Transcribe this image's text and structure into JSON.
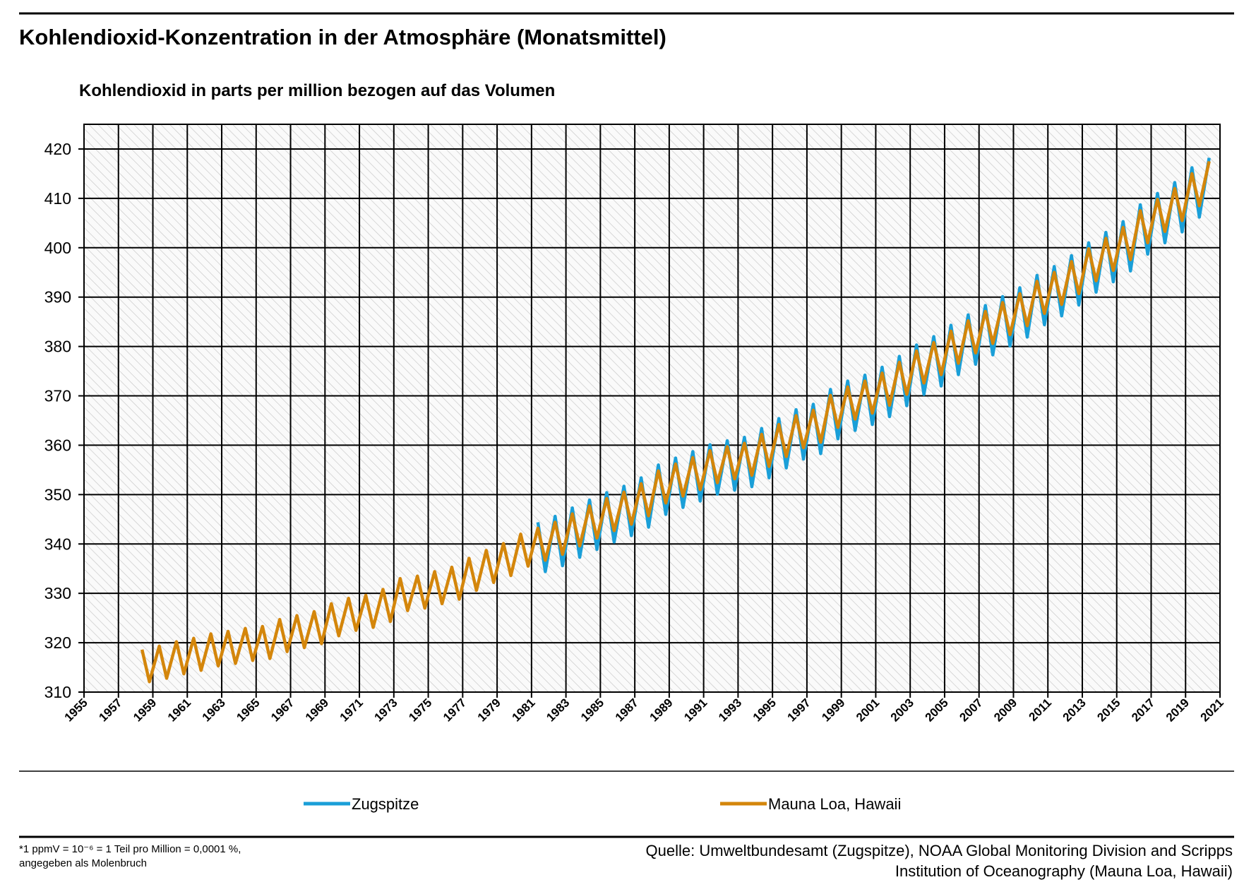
{
  "chart_data": {
    "type": "line",
    "title": "Kohlendioxid-Konzentration in der Atmosphäre (Monatsmittel)",
    "subtitle": "Kohlendioxid in parts per million bezogen auf das Volumen",
    "xlim": [
      1955,
      2021
    ],
    "xticks": [
      1955,
      1957,
      1959,
      1961,
      1963,
      1965,
      1967,
      1969,
      1971,
      1973,
      1975,
      1977,
      1979,
      1981,
      1983,
      1985,
      1987,
      1989,
      1991,
      1993,
      1995,
      1997,
      1999,
      2001,
      2003,
      2005,
      2007,
      2009,
      2011,
      2013,
      2015,
      2017,
      2019,
      2021
    ],
    "ylim": [
      310,
      425
    ],
    "yticks": [
      310,
      320,
      330,
      340,
      350,
      360,
      370,
      380,
      390,
      400,
      410,
      420
    ],
    "grid": true,
    "legend": "bottom",
    "series": [
      {
        "name": "Zugspitze",
        "color": "#1a9fd8",
        "x": [
          1981.37,
          1981.8,
          1982.37,
          1982.8,
          1983.37,
          1983.8,
          1984.37,
          1984.8,
          1985.37,
          1985.8,
          1986.37,
          1986.8,
          1987.37,
          1987.8,
          1988.37,
          1988.8,
          1989.37,
          1989.8,
          1990.37,
          1990.8,
          1991.37,
          1991.8,
          1992.37,
          1992.8,
          1993.37,
          1993.8,
          1994.37,
          1994.8,
          1995.37,
          1995.8,
          1996.37,
          1996.8,
          1997.37,
          1997.8,
          1998.37,
          1998.8,
          1999.37,
          1999.8,
          2000.37,
          2000.8,
          2001.37,
          2001.8,
          2002.37,
          2002.8,
          2003.37,
          2003.8,
          2004.37,
          2004.8,
          2005.37,
          2005.8,
          2006.37,
          2006.8,
          2007.37,
          2007.8,
          2008.37,
          2008.8,
          2009.37,
          2009.8,
          2010.37,
          2010.8,
          2011.37,
          2011.8,
          2012.37,
          2012.8,
          2013.37,
          2013.8,
          2014.37,
          2014.8,
          2015.37,
          2015.8,
          2016.37,
          2016.8,
          2017.37,
          2017.8,
          2018.37,
          2018.8,
          2019.37,
          2019.8,
          2020.37
        ],
        "values": [
          344.4,
          334.4,
          345.6,
          335.6,
          347.3,
          337.3,
          348.9,
          338.9,
          350.4,
          340.4,
          351.7,
          341.7,
          353.4,
          343.4,
          356.0,
          346.0,
          357.4,
          347.4,
          358.7,
          348.7,
          360.1,
          350.1,
          360.9,
          350.9,
          361.6,
          351.6,
          363.4,
          353.4,
          365.4,
          355.4,
          367.2,
          357.2,
          368.3,
          358.3,
          371.3,
          361.3,
          373.0,
          363.0,
          374.2,
          364.2,
          375.8,
          365.8,
          378.0,
          368.0,
          380.3,
          370.3,
          382.0,
          372.0,
          384.3,
          374.3,
          386.4,
          376.4,
          388.3,
          378.3,
          390.1,
          380.1,
          391.9,
          381.9,
          394.4,
          384.4,
          396.2,
          386.2,
          398.4,
          388.4,
          401.0,
          391.0,
          403.1,
          393.1,
          405.3,
          395.3,
          408.7,
          398.7,
          411.0,
          401.0,
          413.2,
          403.2,
          416.2,
          406.2,
          418.2
        ]
      },
      {
        "name": "Mauna Loa, Hawaii",
        "color": "#d4860b",
        "x": [
          1958.37,
          1958.8,
          1959.37,
          1959.8,
          1960.37,
          1960.8,
          1961.37,
          1961.8,
          1962.37,
          1962.8,
          1963.37,
          1963.8,
          1964.37,
          1964.8,
          1965.37,
          1965.8,
          1966.37,
          1966.8,
          1967.37,
          1967.8,
          1968.37,
          1968.8,
          1969.37,
          1969.8,
          1970.37,
          1970.8,
          1971.37,
          1971.8,
          1972.37,
          1972.8,
          1973.37,
          1973.8,
          1974.37,
          1974.8,
          1975.37,
          1975.8,
          1976.37,
          1976.8,
          1977.37,
          1977.8,
          1978.37,
          1978.8,
          1979.37,
          1979.8,
          1980.37,
          1980.8,
          1981.37,
          1981.8,
          1982.37,
          1982.8,
          1983.37,
          1983.8,
          1984.37,
          1984.8,
          1985.37,
          1985.8,
          1986.37,
          1986.8,
          1987.37,
          1987.8,
          1988.37,
          1988.8,
          1989.37,
          1989.8,
          1990.37,
          1990.8,
          1991.37,
          1991.8,
          1992.37,
          1992.8,
          1993.37,
          1993.8,
          1994.37,
          1994.8,
          1995.37,
          1995.8,
          1996.37,
          1996.8,
          1997.37,
          1997.8,
          1998.37,
          1998.8,
          1999.37,
          1999.8,
          2000.37,
          2000.8,
          2001.37,
          2001.8,
          2002.37,
          2002.8,
          2003.37,
          2003.8,
          2004.37,
          2004.8,
          2005.37,
          2005.8,
          2006.37,
          2006.8,
          2007.37,
          2007.8,
          2008.37,
          2008.8,
          2009.37,
          2009.8,
          2010.37,
          2010.8,
          2011.37,
          2011.8,
          2012.37,
          2012.8,
          2013.37,
          2013.8,
          2014.37,
          2014.8,
          2015.37,
          2015.8,
          2016.37,
          2016.8,
          2017.37,
          2017.8,
          2018.37,
          2018.8,
          2019.37,
          2019.8,
          2020.37
        ],
        "values": [
          318.6,
          312.1,
          319.3,
          312.8,
          320.2,
          313.7,
          320.9,
          314.4,
          321.8,
          315.3,
          322.3,
          315.8,
          322.9,
          316.4,
          323.3,
          316.8,
          324.7,
          318.2,
          325.5,
          319.0,
          326.3,
          319.8,
          327.9,
          321.4,
          329.0,
          322.5,
          329.6,
          323.1,
          330.8,
          324.3,
          333.0,
          326.5,
          333.5,
          327.0,
          334.4,
          327.9,
          335.3,
          328.8,
          337.1,
          330.6,
          338.7,
          332.2,
          340.1,
          333.6,
          342.0,
          335.5,
          343.2,
          336.7,
          344.4,
          337.9,
          346.1,
          339.6,
          347.7,
          341.2,
          349.2,
          342.7,
          350.5,
          344.0,
          352.2,
          345.7,
          354.8,
          348.3,
          356.2,
          349.7,
          357.5,
          351.0,
          358.9,
          352.4,
          359.7,
          353.2,
          360.4,
          353.9,
          362.2,
          355.7,
          364.2,
          357.7,
          366.0,
          359.5,
          367.1,
          360.6,
          370.1,
          363.6,
          371.8,
          365.3,
          373.0,
          366.5,
          374.6,
          368.1,
          376.8,
          370.3,
          379.1,
          372.6,
          380.8,
          374.3,
          383.1,
          376.6,
          385.2,
          378.7,
          387.1,
          380.6,
          388.9,
          382.4,
          390.7,
          384.2,
          393.2,
          386.7,
          395.0,
          388.5,
          397.2,
          390.7,
          399.8,
          393.3,
          401.9,
          395.4,
          404.1,
          397.6,
          407.5,
          401.0,
          409.8,
          403.3,
          412.0,
          405.5,
          415.0,
          408.5,
          417.5
        ]
      }
    ],
    "footnote": [
      "*1 ppmV = 10⁻⁶ = 1 Teil pro Million = 0,0001 %,",
      "angegeben als Molenbruch"
    ],
    "source": [
      "Quelle: Umweltbundesamt (Zugspitze), NOAA Global Monitoring Division and Scripps",
      "Institution of Oceanography  (Mauna Loa, Hawaii)"
    ]
  }
}
